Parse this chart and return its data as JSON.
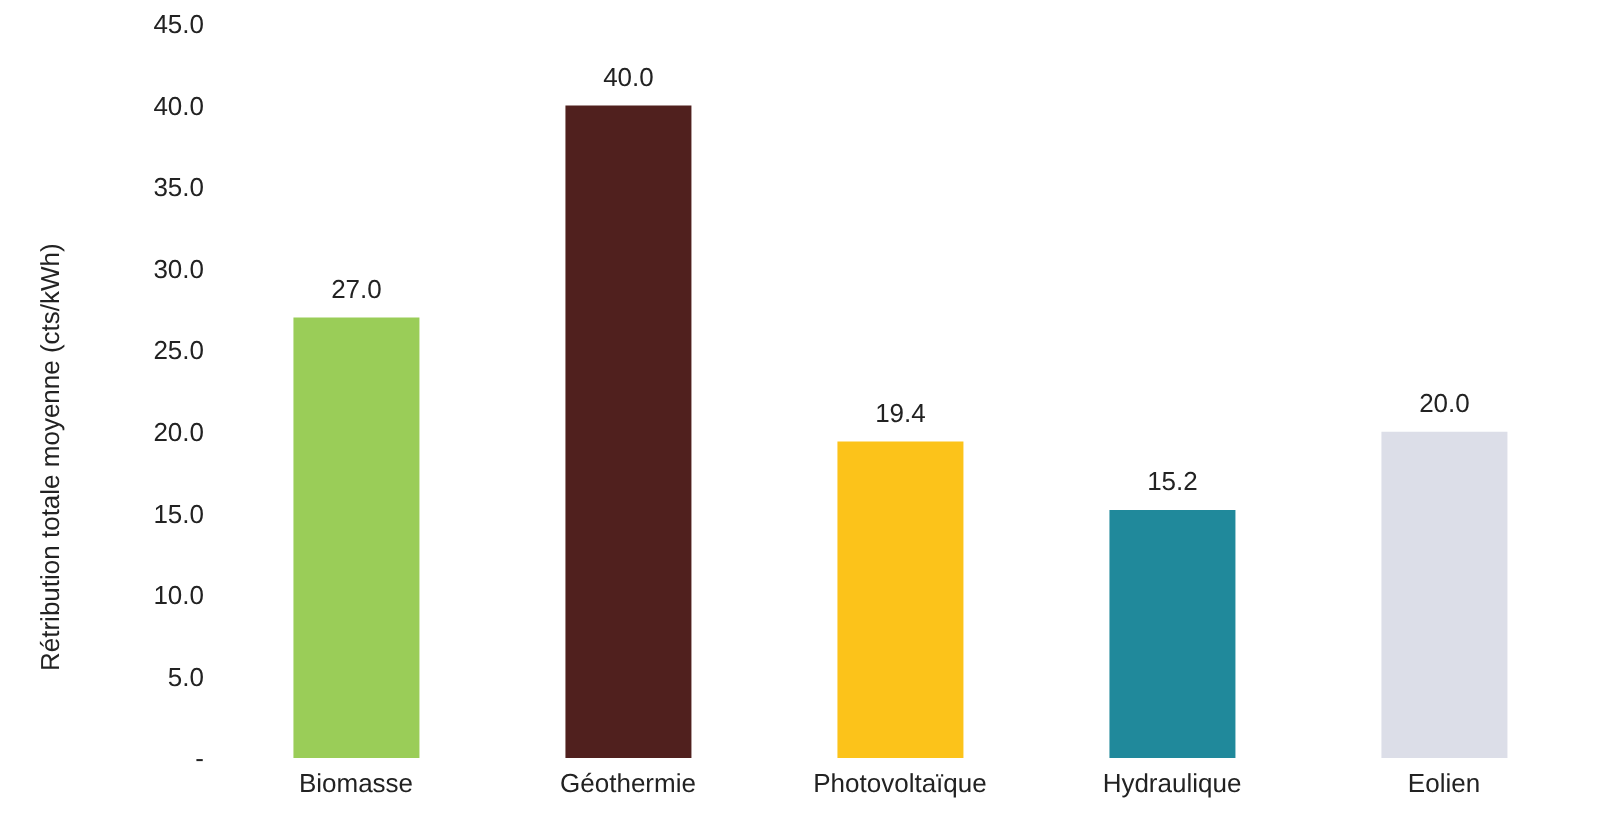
{
  "chart_data": {
    "type": "bar",
    "ylabel": "Rétribution totale moyenne  (cts/kWh)",
    "categories": [
      "Biomasse",
      "Géothermie",
      "Photovoltaïque",
      "Hydraulique",
      "Eolien"
    ],
    "values": [
      27.0,
      40.0,
      19.4,
      15.2,
      20.0
    ],
    "colors": [
      "#9acd58",
      "#50201e",
      "#fcc31a",
      "#20899b",
      "#dcdee8"
    ],
    "value_labels": [
      "27.0",
      "40.0",
      "19.4",
      "15.2",
      "20.0"
    ],
    "ylim": [
      0,
      45
    ],
    "yticks": [
      {
        "value": 0,
        "label": "-"
      },
      {
        "value": 5,
        "label": "5.0"
      },
      {
        "value": 10,
        "label": "10.0"
      },
      {
        "value": 15,
        "label": "15.0"
      },
      {
        "value": 20,
        "label": "20.0"
      },
      {
        "value": 25,
        "label": "25.0"
      },
      {
        "value": 30,
        "label": "30.0"
      },
      {
        "value": 35,
        "label": "35.0"
      },
      {
        "value": 40,
        "label": "40.0"
      },
      {
        "value": 45,
        "label": "45.0"
      }
    ]
  }
}
